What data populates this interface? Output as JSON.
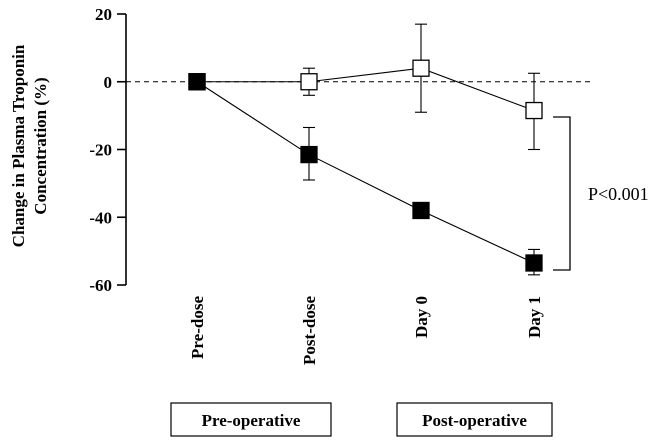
{
  "chart_data": {
    "type": "line",
    "ylabel_lines": [
      "Change in Plasma Troponin",
      "Concentration (%)"
    ],
    "categories": [
      "Pre-dose",
      "Post-dose",
      "Day 0",
      "Day 1"
    ],
    "ylim": [
      -60,
      20
    ],
    "yticks": [
      20,
      0,
      -20,
      -40,
      -60
    ],
    "reference_line": 0,
    "series": [
      {
        "marker": "open-square",
        "values": [
          0,
          0,
          4,
          -8.5
        ],
        "error_upper": [
          0,
          4,
          17,
          2.5
        ],
        "error_lower": [
          0,
          -4,
          -9,
          -20
        ]
      },
      {
        "marker": "filled-square",
        "values": [
          0,
          -21.5,
          -38,
          -53.5
        ],
        "error_upper": [
          0,
          -13.5,
          -38,
          -49.5
        ],
        "error_lower": [
          0,
          -29,
          -38,
          -57
        ]
      }
    ],
    "annotation": "P<0.001",
    "groups": [
      {
        "label": "Pre-operative",
        "categories": [
          "Pre-dose",
          "Post-dose"
        ]
      },
      {
        "label": "Post-operative",
        "categories": [
          "Day 0",
          "Day 1"
        ]
      }
    ]
  }
}
